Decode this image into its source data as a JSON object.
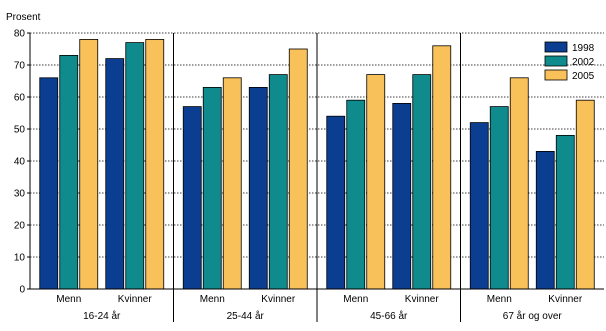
{
  "chart_data": {
    "type": "bar",
    "ylabel": "Prosent",
    "ylim": [
      0,
      80
    ],
    "yticks": [
      0,
      10,
      20,
      30,
      40,
      50,
      60,
      70,
      80
    ],
    "grid": true,
    "legend_position": "top-right",
    "groups": [
      {
        "label": "16-24 år",
        "categories": [
          "Menn",
          "Kvinner"
        ]
      },
      {
        "label": "25-44 år",
        "categories": [
          "Menn",
          "Kvinner"
        ]
      },
      {
        "label": "45-66 år",
        "categories": [
          "Menn",
          "Kvinner"
        ]
      },
      {
        "label": "67 år og over",
        "categories": [
          "Menn",
          "Kvinner"
        ]
      }
    ],
    "series": [
      {
        "name": "1998",
        "color": "#0b3d91",
        "values": [
          66,
          72,
          57,
          63,
          54,
          58,
          52,
          43
        ]
      },
      {
        "name": "2002",
        "color": "#0f8b8d",
        "values": [
          73,
          77,
          63,
          67,
          59,
          67,
          57,
          48
        ]
      },
      {
        "name": "2005",
        "color": "#f9c15a",
        "values": [
          78,
          78,
          66,
          75,
          67,
          76,
          66,
          59
        ]
      }
    ]
  }
}
